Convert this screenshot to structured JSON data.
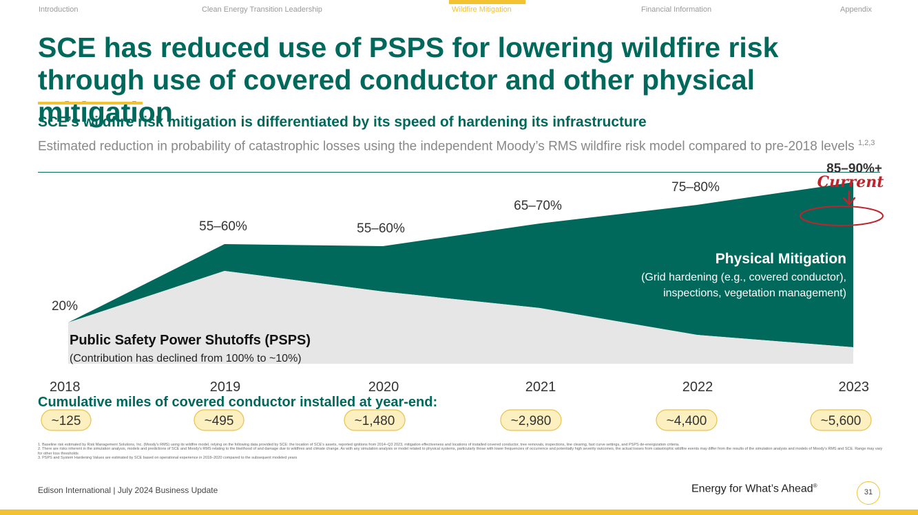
{
  "nav": {
    "items": [
      "Introduction",
      "Clean Energy Transition Leadership",
      "Wildfire Mitigation",
      "Financial Information",
      "Appendix"
    ],
    "active_index": 2
  },
  "title": "SCE has reduced use of PSPS for lowering wildfire risk through use of covered conductor and other physical mitigation",
  "subhead": "SCE’s wildfire risk mitigation is differentiated by its speed of hardening its infrastructure",
  "description": "Estimated reduction in probability of catastrophic losses using the independent Moody’s RMS wildfire risk model compared to pre-2018 levels",
  "description_sup": "1,2,3",
  "chart_data": {
    "type": "area",
    "x": [
      "2018",
      "2019",
      "2020",
      "2021",
      "2022",
      "2023"
    ],
    "series": [
      {
        "name": "Public Safety Power Shutoffs (PSPS)",
        "values": [
          20,
          45,
          35,
          27,
          14,
          8
        ]
      },
      {
        "name": "Physical Mitigation",
        "values": [
          0,
          13,
          22,
          41,
          63,
          80
        ]
      }
    ],
    "total_labels": [
      "20%",
      "55–60%",
      "55–60%",
      "65–70%",
      "75–80%",
      "85–90%+"
    ],
    "annotation": "Current",
    "psps_label": "Public Safety Power Shutoffs (PSPS)",
    "psps_sublabel": "(Contribution has declined from 100% to ~10%)",
    "pm_label": "Physical Mitigation",
    "pm_sublabel_1": "(Grid hardening (e.g., covered conductor),",
    "pm_sublabel_2": "inspections, vegetation management)",
    "colors": {
      "psps": "#e6e6e6",
      "physical": "#00695c",
      "accent": "#f2c230",
      "annotation": "#c0232c"
    }
  },
  "miles": {
    "heading": "Cumulative miles of covered conductor installed at year-end:",
    "values": [
      "~125",
      "~495",
      "~1,480",
      "~2,980",
      "~4,400",
      "~5,600"
    ],
    "colors": {
      "fill": "#fcefc0",
      "stroke": "#e9c24a"
    }
  },
  "footnotes": [
    "1.  Baseline risk estimated by Risk Management Solutions, Inc. (Moody's RMS) using its wildfire model, relying on the following data provided by SCE: the location of SCE's assets, reported ignitions from 2014–Q3 2023, mitigation effectiveness and locations of installed covered conductor, tree removals, inspections, line clearing, fast curve settings, and PSPS de-energization criteria.",
    "2.  There are risks inherent in the simulation analysis, models and predictions of SCE and Moody's RMS relating to the likelihood of and damage due to wildfires and climate change. As with any simulation analysis or model related to physical systems, particularly those with lower frequencies of occurrence and potentially high severity outcomes, the actual losses from catastrophic wildfire events may differ from the results of the simulation analysis and models of Moody's RMS and SCE. Range may vary for other loss thresholds",
    "3.  PSPS and System Hardening Values are estimated by SCE based on operational experience in 2018–2020 compared to the subsequent modeled years"
  ],
  "footer": {
    "left": "Edison International |  July 2024 Business Update",
    "tagline": "Energy for What’s Ahead",
    "tagline_mark": "®",
    "page": "31"
  }
}
